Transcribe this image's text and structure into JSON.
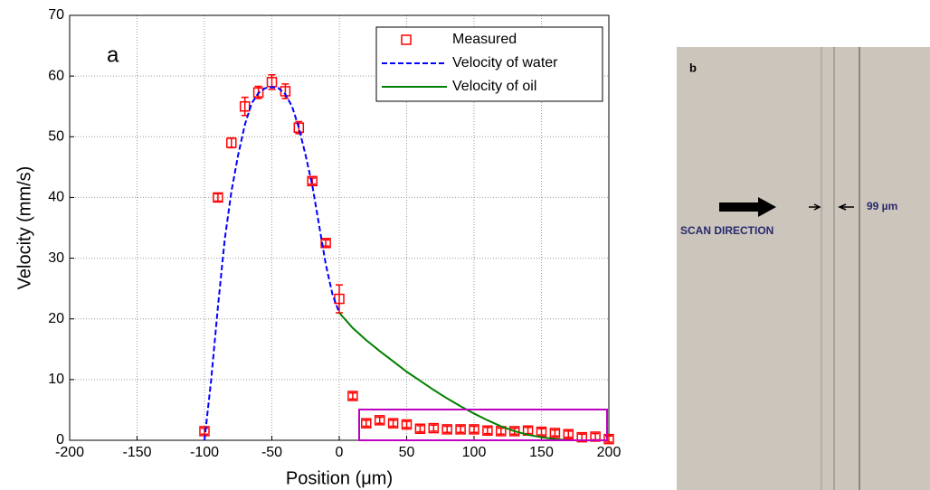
{
  "chart_data": {
    "type": "scatter-line",
    "panel_label": "a",
    "xlabel": "Position (μm)",
    "ylabel": "Velocity (mm/s)",
    "xlim": [
      -200,
      200
    ],
    "xticks": [
      -200,
      -150,
      -100,
      -50,
      0,
      50,
      100,
      150,
      200
    ],
    "ylim": [
      0,
      70
    ],
    "yticks": [
      0,
      10,
      20,
      30,
      40,
      50,
      60,
      70
    ],
    "grid": true,
    "legend": "upper right",
    "series": [
      {
        "name": "Measured",
        "color": "#ff0000",
        "style": "markers",
        "x": [
          -100,
          -90,
          -80,
          -70,
          -60,
          -50,
          -40,
          -30,
          -20,
          -10,
          0,
          10,
          20,
          30,
          40,
          50,
          60,
          70,
          80,
          90,
          100,
          110,
          120,
          130,
          140,
          150,
          160,
          170,
          180,
          190,
          200
        ],
        "values": [
          1.5,
          40,
          49,
          55,
          57.3,
          59,
          57.5,
          51.5,
          42.7,
          32.5,
          23.3,
          7.3,
          2.8,
          3.3,
          2.8,
          2.6,
          1.9,
          2,
          1.8,
          1.8,
          1.8,
          1.6,
          1.5,
          1.5,
          1.6,
          1.4,
          1.2,
          1,
          0.5,
          0.6,
          0.2
        ],
        "errors": [
          0.5,
          0.6,
          0.8,
          1.5,
          1,
          1.2,
          1.2,
          1,
          0.5,
          0.5,
          2.3,
          0.5,
          0.5,
          0.5,
          0.5,
          0.5,
          0.5,
          0.5,
          0.5,
          0.5,
          0.5,
          0.5,
          0.5,
          0.5,
          0.5,
          0.5,
          0.5,
          0.5,
          0.5,
          0.5,
          0.5
        ]
      },
      {
        "name": "Velocity of water",
        "color": "#0000ff",
        "style": "dashed",
        "x": [
          -100,
          -95,
          -90,
          -85,
          -80,
          -75,
          -70,
          -65,
          -60,
          -55,
          -50,
          -45,
          -40,
          -35,
          -30,
          -25,
          -20,
          -15,
          -10,
          -5,
          0
        ],
        "values": [
          0,
          10,
          22,
          33,
          41,
          47,
          52,
          55.5,
          57.2,
          58,
          58.2,
          58,
          57,
          55,
          51.5,
          47,
          42,
          35.5,
          29,
          24,
          21
        ]
      },
      {
        "name": "Velocity of oil",
        "color": "#008000",
        "style": "solid",
        "x": [
          0,
          10,
          20,
          30,
          40,
          50,
          60,
          70,
          80,
          90,
          100,
          110,
          120,
          130,
          140,
          150,
          160,
          170
        ],
        "values": [
          21,
          18.5,
          16.5,
          14.7,
          13,
          11.3,
          9.8,
          8.3,
          6.9,
          5.6,
          4.4,
          3.3,
          2.3,
          1.5,
          0.9,
          0.5,
          0.2,
          0
        ]
      }
    ]
  },
  "photo": {
    "panel_label": "b",
    "direction_label": "SCAN DIRECTION",
    "width_label": "99 µm"
  }
}
